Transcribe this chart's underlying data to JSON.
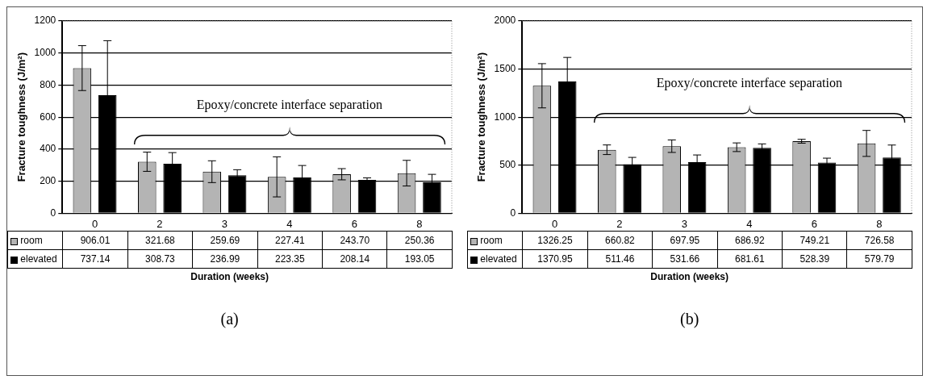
{
  "chart_data": [
    {
      "type": "bar",
      "title": "(a)",
      "xlabel": "Duration (weeks)",
      "ylabel": "Fracture toughness (J/m²)",
      "annotations": [
        "Epoxy/concrete interface separation"
      ],
      "categories": [
        "0",
        "2",
        "3",
        "4",
        "6",
        "8"
      ],
      "ylim": [
        0,
        1200
      ],
      "yticks": [
        0,
        200,
        400,
        600,
        800,
        1000,
        1200
      ],
      "grid": "y",
      "legend": "bottom",
      "series": [
        {
          "name": "room",
          "color": "#b4b4b4",
          "values": [
            906.01,
            321.68,
            259.69,
            227.41,
            243.7,
            250.36
          ],
          "value_labels": [
            "906.01",
            "321.68",
            "259.69",
            "227.41",
            "243.70",
            "250.36"
          ],
          "errors": [
            140,
            60,
            68,
            125,
            35,
            80
          ]
        },
        {
          "name": "elevated",
          "color": "#000000",
          "values": [
            737.14,
            308.73,
            236.99,
            223.35,
            208.14,
            193.05
          ],
          "value_labels": [
            "737.14",
            "308.73",
            "236.99",
            "223.35",
            "208.14",
            "193.05"
          ],
          "errors": [
            340,
            70,
            35,
            75,
            13,
            50
          ]
        }
      ]
    },
    {
      "type": "bar",
      "title": "(b)",
      "xlabel": "Duration (weeks)",
      "ylabel": "Fracture toughness (J/m²)",
      "annotations": [
        "Epoxy/concrete interface separation"
      ],
      "categories": [
        "0",
        "2",
        "3",
        "4",
        "6",
        "8"
      ],
      "ylim": [
        0,
        2000
      ],
      "yticks": [
        0,
        500,
        1000,
        1500,
        2000
      ],
      "grid": "y",
      "legend": "bottom",
      "series": [
        {
          "name": "room",
          "color": "#b4b4b4",
          "values": [
            1326.25,
            660.82,
            697.95,
            686.92,
            749.21,
            726.58
          ],
          "value_labels": [
            "1326.25",
            "660.82",
            "697.95",
            "686.92",
            "749.21",
            "726.58"
          ],
          "errors": [
            230,
            50,
            65,
            45,
            20,
            135
          ]
        },
        {
          "name": "elevated",
          "color": "#000000",
          "values": [
            1370.95,
            511.46,
            531.66,
            681.61,
            528.39,
            579.79
          ],
          "value_labels": [
            "1370.95",
            "511.46",
            "531.66",
            "681.61",
            "528.39",
            "579.79"
          ],
          "errors": [
            250,
            70,
            75,
            40,
            45,
            130
          ]
        }
      ]
    }
  ]
}
